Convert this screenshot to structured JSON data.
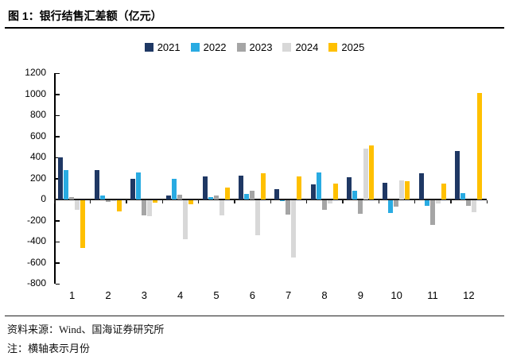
{
  "title": "图 1：银行结售汇差额（亿元）",
  "footer": {
    "source": "资料来源：Wind、国海证券研究所",
    "note": "注：横轴表示月份"
  },
  "chart_data": {
    "type": "bar",
    "title": "银行结售汇差额（亿元）",
    "categories": [
      "1",
      "2",
      "3",
      "4",
      "5",
      "6",
      "7",
      "8",
      "9",
      "10",
      "11",
      "12"
    ],
    "xlabel": "月份",
    "ylabel": "亿元",
    "ylim": [
      -800,
      1200
    ],
    "ytick_step": 200,
    "yticks": [
      1200,
      1000,
      800,
      600,
      400,
      200,
      0,
      -200,
      -400,
      -600,
      -800
    ],
    "grid": false,
    "legend_position": "top-center",
    "series": [
      {
        "name": "2021",
        "color": "#1F3864",
        "values": [
          400,
          280,
          200,
          40,
          220,
          225,
          95,
          140,
          210,
          160,
          250,
          460
        ]
      },
      {
        "name": "2022",
        "color": "#29ABE2",
        "values": [
          280,
          40,
          260,
          195,
          25,
          55,
          -15,
          255,
          80,
          -125,
          -60,
          60
        ]
      },
      {
        "name": "2023",
        "color": "#A5A5A5",
        "values": [
          20,
          -25,
          -150,
          45,
          35,
          80,
          -145,
          -100,
          -135,
          -70,
          -245,
          -60
        ]
      },
      {
        "name": "2024",
        "color": "#D8D8D8",
        "values": [
          -100,
          -15,
          -160,
          -380,
          -150,
          -340,
          -550,
          -40,
          480,
          180,
          -40,
          -120
        ]
      },
      {
        "name": "2025",
        "color": "#FFC000",
        "values": [
          -460,
          -110,
          -30,
          -45,
          110,
          250,
          220,
          150,
          510,
          170,
          150,
          1010
        ]
      }
    ]
  },
  "axis_color": "#000000"
}
